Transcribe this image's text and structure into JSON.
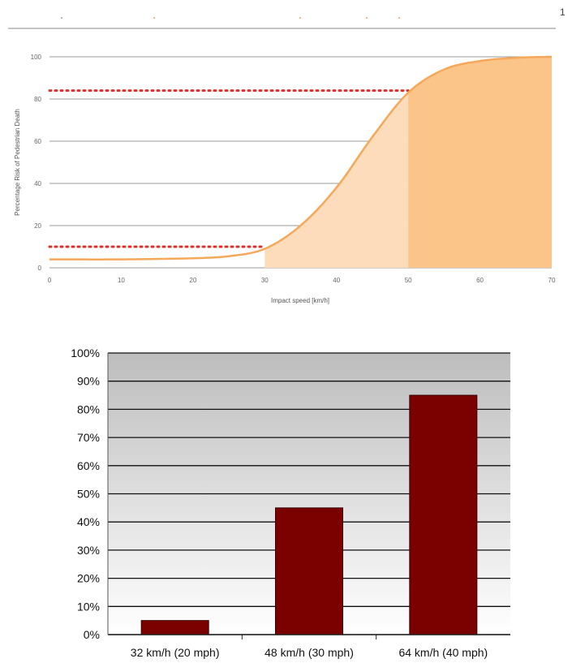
{
  "page": {
    "stray_mark": "1"
  },
  "chart_data": [
    {
      "type": "area",
      "xlabel": "Impact speed [km/h]",
      "ylabel": "Percentage Risk of Pedestrian Death",
      "xlim": [
        0,
        70
      ],
      "ylim": [
        0,
        100
      ],
      "x_ticks": [
        0,
        10,
        20,
        30,
        40,
        50,
        60,
        70
      ],
      "y_ticks": [
        0,
        20,
        40,
        60,
        80,
        100
      ],
      "grid": "horizontal",
      "curve": {
        "x": [
          0,
          10,
          20,
          25,
          30,
          35,
          40,
          45,
          50,
          55,
          60,
          65,
          70
        ],
        "y": [
          4,
          4,
          4.5,
          5.5,
          9,
          20,
          38,
          62,
          83,
          94,
          98,
          99.5,
          100
        ]
      },
      "shaded_regions": [
        {
          "from": 30,
          "to": 50,
          "color": "#fcdcbb"
        },
        {
          "from": 50,
          "to": 70,
          "color": "#fbc488"
        }
      ],
      "reference_lines": [
        {
          "y": 10,
          "x_to": 30,
          "color": "#d9302c"
        },
        {
          "y": 84,
          "x_to": 50,
          "color": "#d9302c"
        }
      ],
      "colors": {
        "curve": "#f5a85a",
        "grid": "#9a9a9a"
      }
    },
    {
      "type": "bar",
      "categories": [
        "32 km/h (20 mph)",
        "48 km/h (30 mph)",
        "64 km/h (40 mph)"
      ],
      "values": [
        5,
        45,
        85
      ],
      "ylim": [
        0,
        100
      ],
      "y_ticks": [
        "0%",
        "10%",
        "20%",
        "30%",
        "40%",
        "50%",
        "60%",
        "70%",
        "80%",
        "90%",
        "100%"
      ],
      "grid": "horizontal",
      "colors": {
        "bar": "#7b0000",
        "plot_top": "#bdbdbd",
        "plot_bottom": "#ffffff"
      }
    }
  ]
}
